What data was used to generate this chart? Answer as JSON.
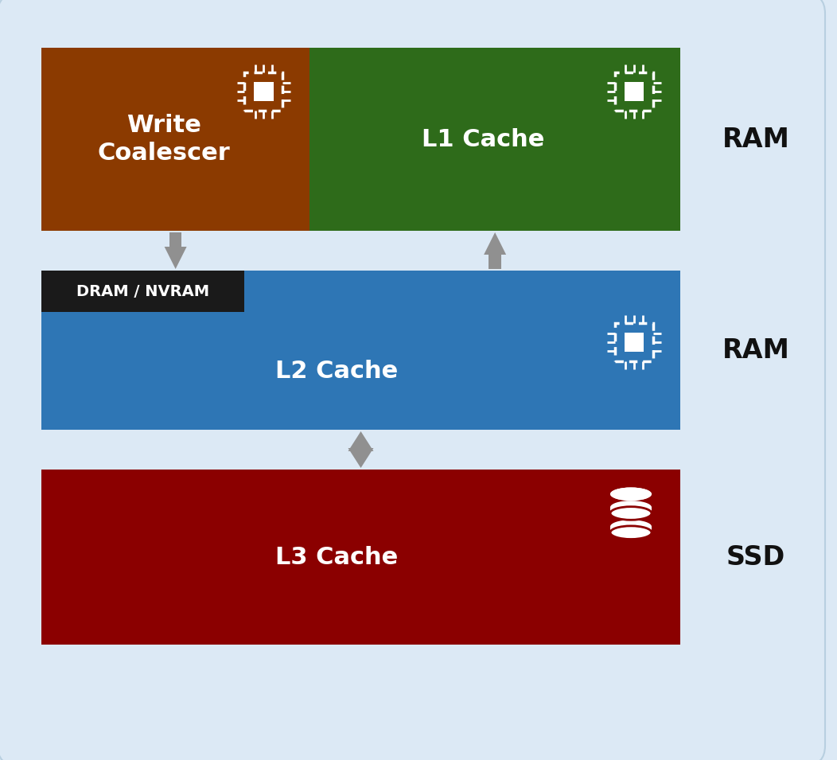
{
  "bg_color": "#dce9f5",
  "bg_border_color": "#b8cfe0",
  "write_coalescer_color": "#8B3A00",
  "l1_cache_color": "#2E6B1A",
  "l2_cache_color": "#2E76B5",
  "l2_label_bg_color": "#1a1a1a",
  "l3_cache_color": "#8B0000",
  "arrow_color": "#909090",
  "text_color_white": "#ffffff",
  "text_color_black": "#111111",
  "label_ram1": "RAM",
  "label_ram2": "RAM",
  "label_ssd": "SSD",
  "write_coalescer_text": "Write\nCoalescer",
  "l1_text": "L1 Cache",
  "l2_text": "L2 Cache",
  "l2_label_text": "DRAM / NVRAM",
  "l3_text": "L3 Cache",
  "figw": 10.52,
  "figh": 9.55
}
